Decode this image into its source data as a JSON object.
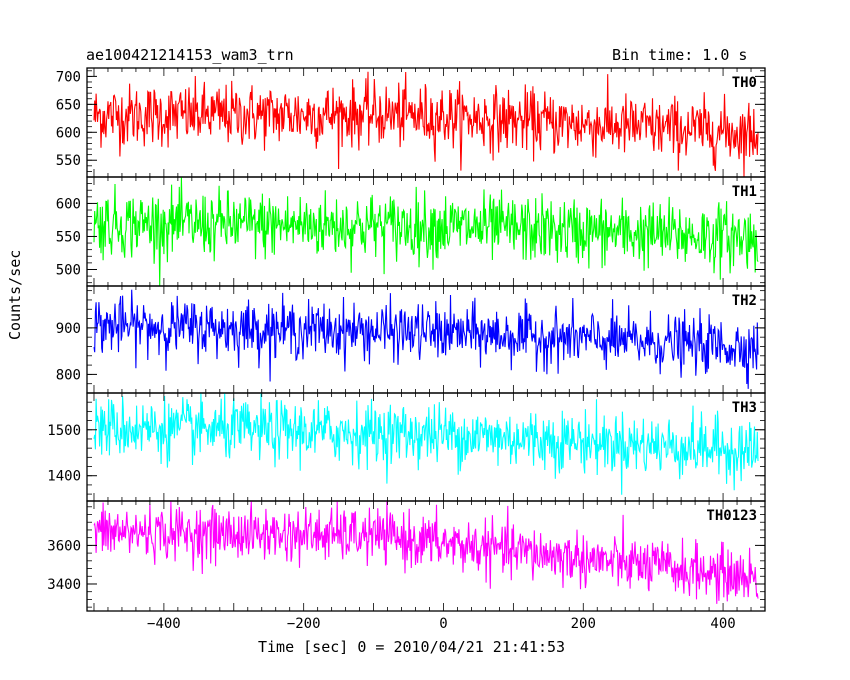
{
  "header": {
    "title": "ae100421214153_wam3_trn",
    "bin_time": "Bin time: 1.0 s"
  },
  "axes": {
    "ylabel": "Counts/sec",
    "xlabel": "Time [sec] 0 = 2010/04/21 21:41:53",
    "x_ticks": [
      "−400",
      "−200",
      "0",
      "200",
      "400"
    ]
  },
  "chart_data": [
    {
      "type": "line",
      "name": "TH0",
      "color": "#ff0000",
      "x_range": [
        -510,
        460
      ],
      "ylim": [
        520,
        715
      ],
      "y_ticks": [
        550,
        600,
        650,
        700
      ],
      "x_start": -500,
      "x_end": 450,
      "trend": [
        [
          -500,
          630
        ],
        [
          -100,
          632
        ],
        [
          0,
          628
        ],
        [
          450,
          598
        ]
      ],
      "noise": 28
    },
    {
      "type": "line",
      "name": "TH1",
      "color": "#00ff00",
      "x_range": [
        -510,
        460
      ],
      "ylim": [
        475,
        640
      ],
      "y_ticks": [
        500,
        550,
        600
      ],
      "x_start": -500,
      "x_end": 450,
      "trend": [
        [
          -500,
          570
        ],
        [
          0,
          565
        ],
        [
          450,
          548
        ]
      ],
      "noise": 25
    },
    {
      "type": "line",
      "name": "TH2",
      "color": "#0000ff",
      "x_range": [
        -510,
        460
      ],
      "ylim": [
        760,
        990
      ],
      "y_ticks": [
        800,
        900
      ],
      "x_start": -500,
      "x_end": 450,
      "trend": [
        [
          -500,
          905
        ],
        [
          0,
          890
        ],
        [
          450,
          858
        ]
      ],
      "noise": 30
    },
    {
      "type": "line",
      "name": "TH3",
      "color": "#00ffff",
      "x_range": [
        -510,
        460
      ],
      "ylim": [
        1345,
        1580
      ],
      "y_ticks": [
        1400,
        1500
      ],
      "x_start": -500,
      "x_end": 450,
      "trend": [
        [
          -500,
          1505
        ],
        [
          0,
          1490
        ],
        [
          450,
          1455
        ]
      ],
      "noise": 33
    },
    {
      "type": "line",
      "name": "TH0123",
      "color": "#ff00ff",
      "x_range": [
        -510,
        460
      ],
      "ylim": [
        3260,
        3830
      ],
      "y_ticks": [
        3400,
        3600
      ],
      "x_start": -500,
      "x_end": 450,
      "trend": [
        [
          -500,
          3670
        ],
        [
          -100,
          3650
        ],
        [
          100,
          3570
        ],
        [
          450,
          3430
        ]
      ],
      "noise": 70
    }
  ]
}
